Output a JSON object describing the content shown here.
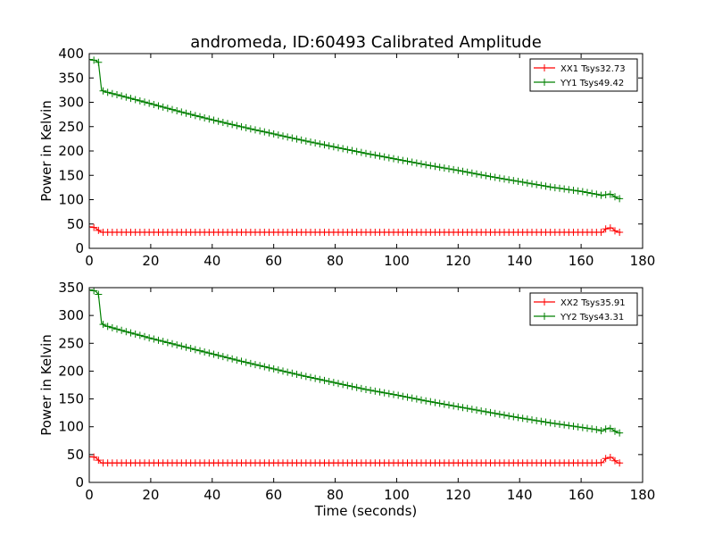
{
  "chart_data": {
    "type": "line",
    "title": "andromeda, ID:60493 Calibrated Amplitude",
    "xlabel": "Time (seconds)",
    "colors": {
      "xx": "#ff0000",
      "yy": "#008000"
    },
    "panels": [
      {
        "ylabel": "Power in Kelvin",
        "xlim": [
          0,
          180
        ],
        "ylim": [
          0,
          400
        ],
        "xticks": [
          0,
          20,
          40,
          60,
          80,
          100,
          120,
          140,
          160,
          180
        ],
        "yticks": [
          0,
          50,
          100,
          150,
          200,
          250,
          300,
          350,
          400
        ],
        "legend_position": "top-right",
        "series": [
          {
            "name": "XX1 Tsys32.73",
            "color": "#ff0000",
            "x": [
              0,
              1,
              2,
              3,
              4,
              5,
              10,
              20,
              40,
              60,
              80,
              100,
              120,
              140,
              160,
              166,
              167,
              168,
              169,
              170,
              171,
              172,
              173
            ],
            "y": [
              44,
              44,
              42,
              37,
              33,
              33,
              33,
              33,
              33,
              33,
              33,
              33,
              33,
              33,
              33,
              33,
              33,
              40,
              42,
              42,
              36,
              33,
              33
            ]
          },
          {
            "name": "YY1 Tsys49.42",
            "color": "#008000",
            "x": [
              0,
              1,
              2,
              3,
              4,
              5,
              10,
              20,
              30,
              40,
              50,
              60,
              70,
              80,
              90,
              100,
              110,
              120,
              130,
              140,
              150,
              160,
              166,
              167,
              168,
              169,
              170,
              171,
              172,
              173
            ],
            "y": [
              388,
              387,
              386,
              382,
              325,
              322,
              314,
              297,
              280,
              264,
              249,
              235,
              221,
              208,
              195,
              183,
              171,
              160,
              148,
              137,
              126,
              117,
              110,
              108,
              110,
              112,
              110,
              106,
              102,
              102
            ]
          }
        ]
      },
      {
        "ylabel": "Power in Kelvin",
        "xlim": [
          0,
          180
        ],
        "ylim": [
          0,
          350
        ],
        "xticks": [
          0,
          20,
          40,
          60,
          80,
          100,
          120,
          140,
          160,
          180
        ],
        "yticks": [
          0,
          50,
          100,
          150,
          200,
          250,
          300,
          350
        ],
        "legend_position": "top-right",
        "series": [
          {
            "name": "XX2 Tsys35.91",
            "color": "#ff0000",
            "x": [
              0,
              1,
              2,
              3,
              4,
              5,
              10,
              20,
              40,
              60,
              80,
              100,
              120,
              140,
              160,
              166,
              167,
              168,
              169,
              170,
              171,
              172,
              173
            ],
            "y": [
              46,
              46,
              45,
              40,
              35,
              35,
              35,
              35,
              35,
              35,
              35,
              35,
              35,
              35,
              35,
              35,
              36,
              43,
              45,
              45,
              39,
              35,
              35
            ]
          },
          {
            "name": "YY2 Tsys43.31",
            "color": "#008000",
            "x": [
              0,
              1,
              2,
              3,
              4,
              5,
              10,
              20,
              30,
              40,
              50,
              60,
              70,
              80,
              90,
              100,
              110,
              120,
              130,
              140,
              150,
              160,
              166,
              167,
              168,
              169,
              170,
              171,
              172,
              173
            ],
            "y": [
              346,
              345,
              344,
              338,
              286,
              282,
              274,
              259,
              245,
              231,
              217,
              204,
              191,
              179,
              167,
              157,
              146,
              136,
              126,
              116,
              107,
              99,
              94,
              92,
              96,
              98,
              96,
              92,
              89,
              89
            ]
          }
        ]
      }
    ]
  }
}
